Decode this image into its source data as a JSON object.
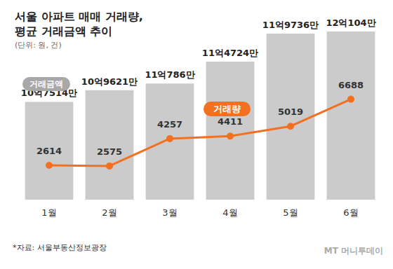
{
  "chart_data": {
    "type": "bar",
    "title": "서울 아파트 매매 거래량,\n평균 거래금액 추이",
    "subtitle": "(단위: 원, 건)",
    "source": "*자료: 서울부동산정보광장",
    "credit": "MT 머니투데이",
    "categories": [
      "1월",
      "2월",
      "3월",
      "4월",
      "5월",
      "6월"
    ],
    "series": [
      {
        "name": "거래금액",
        "type": "bar",
        "color": "#cbcbcb",
        "values": [
          1075140000,
          1096210000,
          1107860000,
          1147240000,
          1197360000,
          1201040000
        ],
        "value_labels": [
          "10억7514만",
          "10억9621만",
          "11억786만",
          "11억4724만",
          "11억9736만",
          "12억104만"
        ]
      },
      {
        "name": "거래량",
        "type": "line",
        "color": "#f37021",
        "axis": "y2",
        "marker": "circle",
        "values": [
          2614,
          2575,
          4257,
          4411,
          5019,
          6688
        ]
      }
    ],
    "ylim": [
      900000000,
      1220000000
    ],
    "yticks": [
      900000000,
      980000000,
      1060000000,
      1140000000,
      1220000000
    ],
    "y2lim": [
      500,
      11500
    ],
    "y2ticks": [
      500,
      2700,
      4900,
      7100,
      9300,
      11500
    ],
    "grid": false,
    "data_labels": true,
    "tick_labels": "x"
  }
}
